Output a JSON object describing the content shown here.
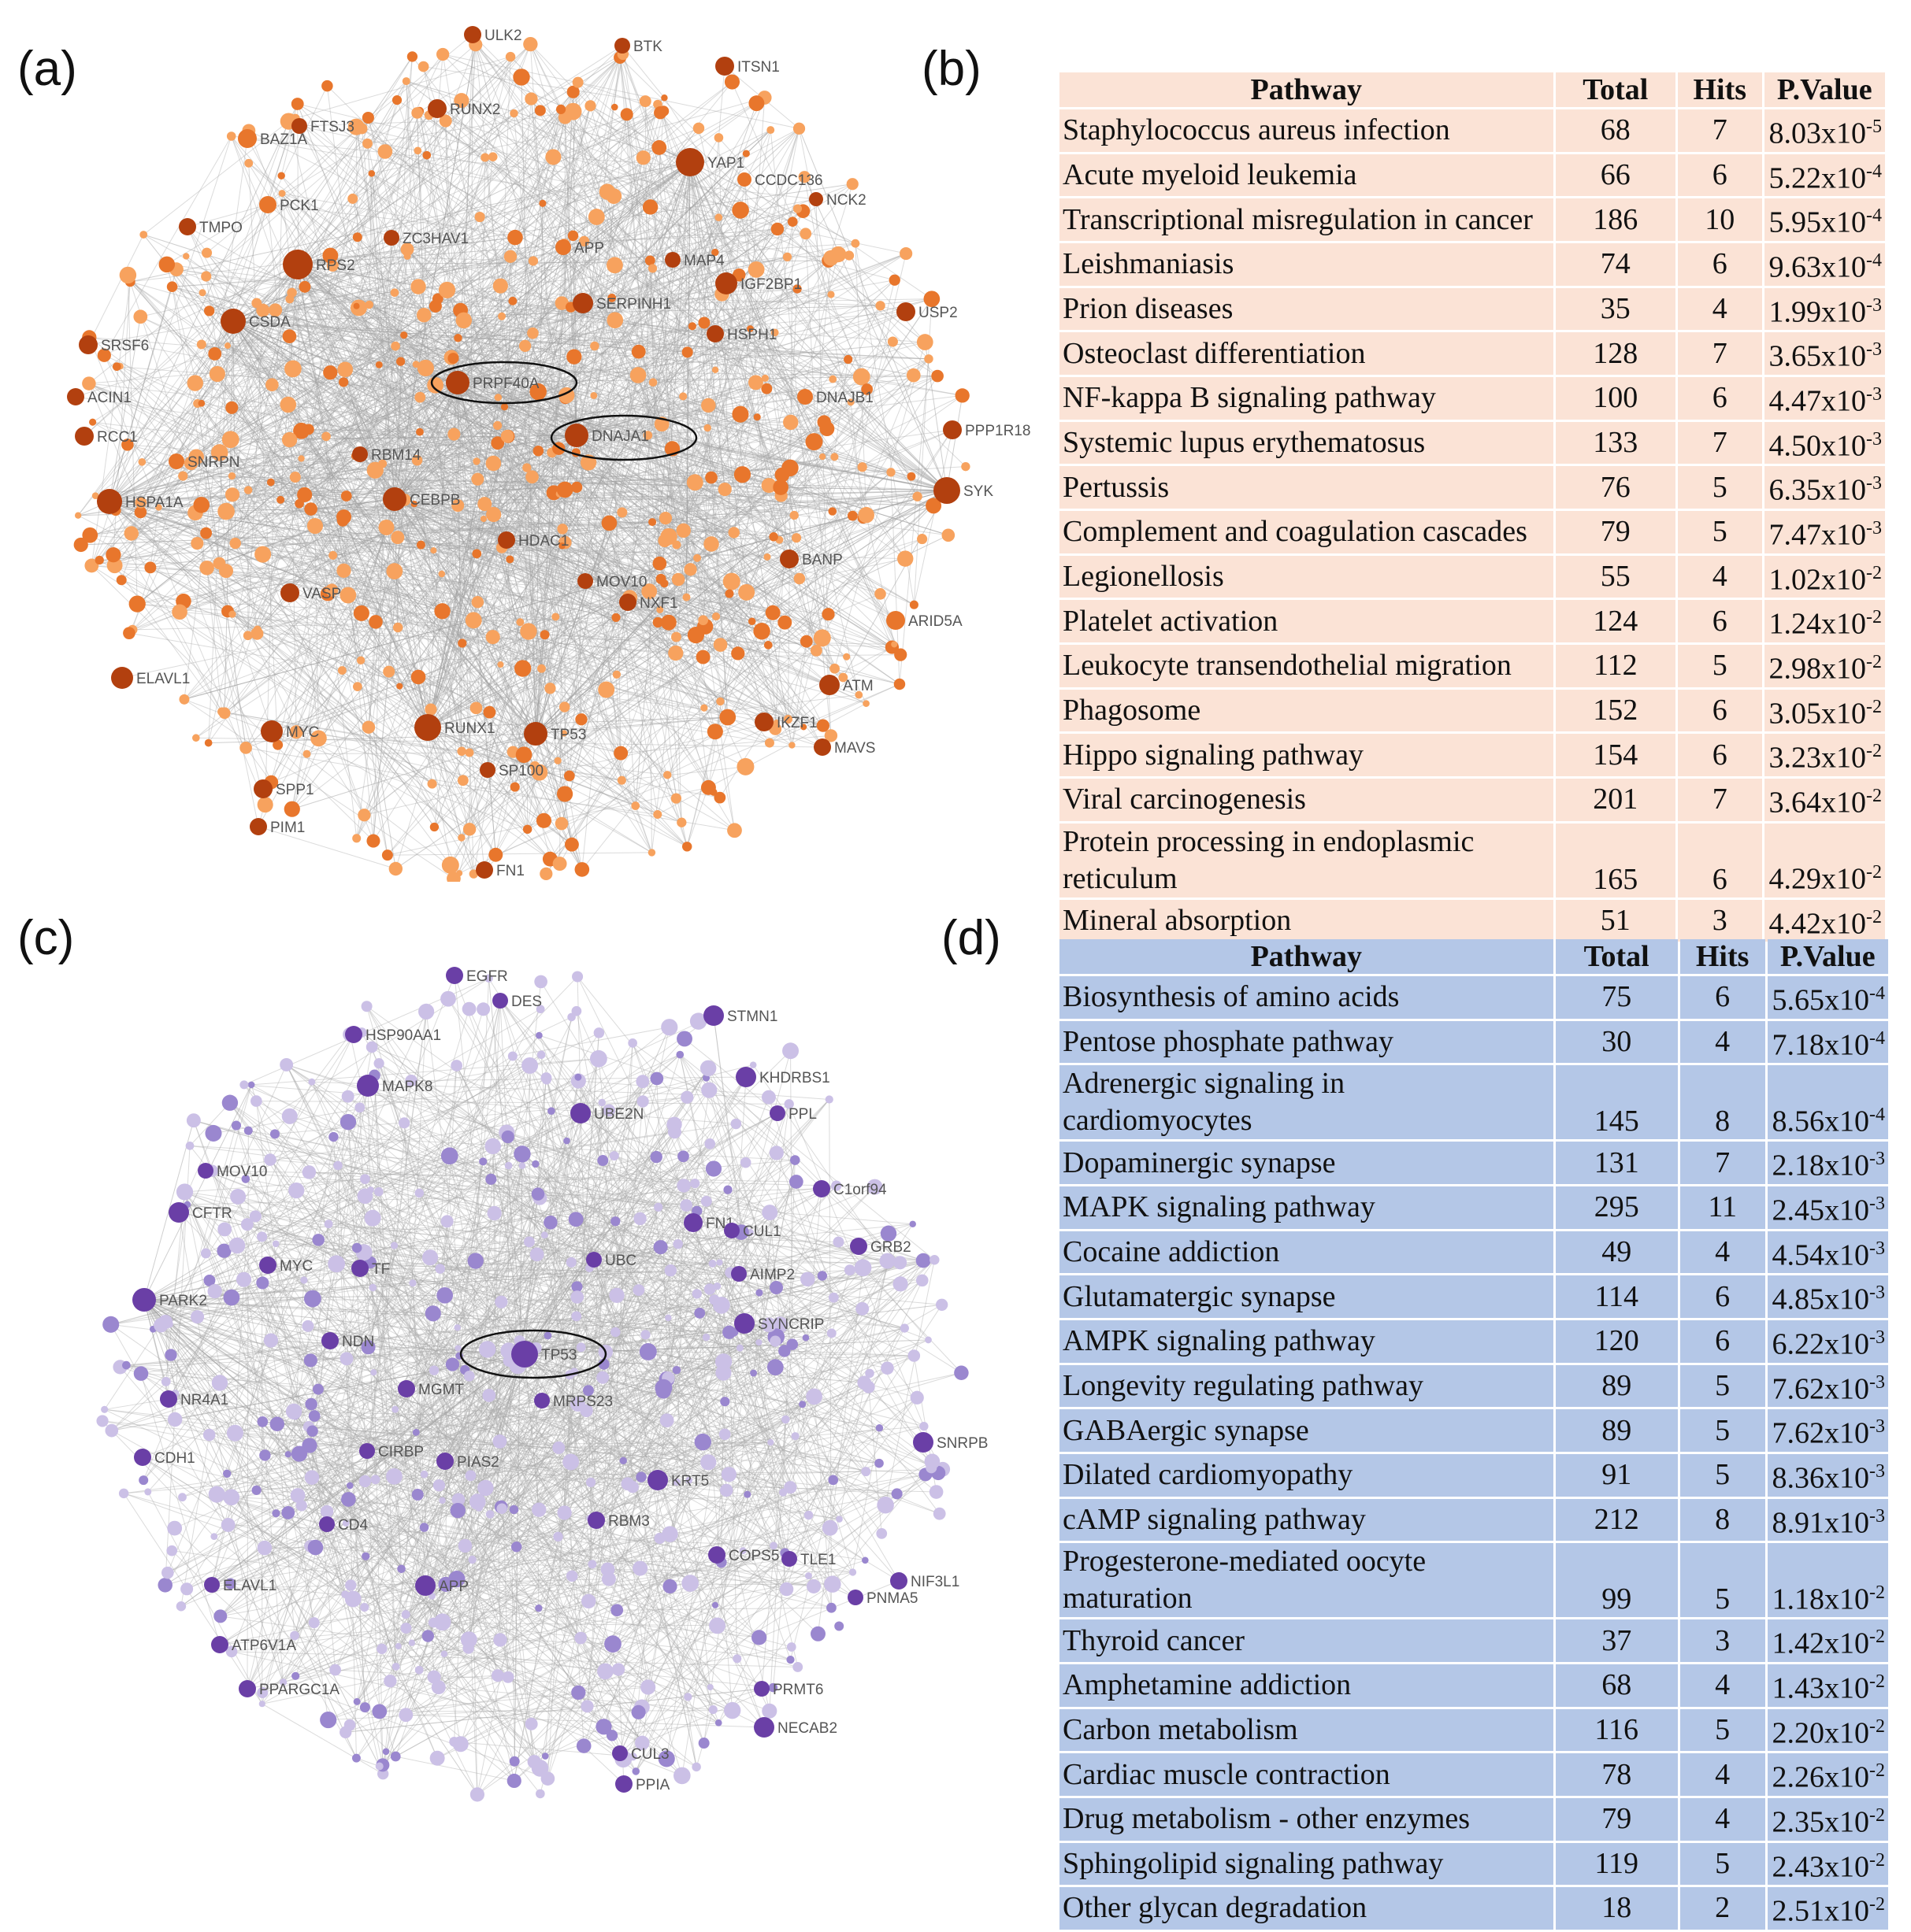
{
  "panels": {
    "a": "(a)",
    "b": "(b)",
    "c": "(c)",
    "d": "(d)"
  },
  "colors": {
    "network_a_dark": "#b2400f",
    "network_a_light": "#f7a25e",
    "network_c_dark": "#6a3fa6",
    "network_c_light": "#cbc0e6",
    "table_b_bg": "#fbe3d6",
    "table_d_bg": "#b4c7e7",
    "edge": "#b8b8b8"
  },
  "network_a": {
    "labels": [
      "ULK2",
      "BTK",
      "ITSN1",
      "FTSJ3",
      "RUNX2",
      "BAZ1A",
      "YAP1",
      "CCDC136",
      "PCK1",
      "NCK2",
      "TMPO",
      "ZC3HAV1",
      "APP",
      "MAP4",
      "RPS2",
      "IGF2BP1",
      "SERPINH1",
      "CSDA",
      "USP2",
      "HSPH1",
      "SRSF6",
      "PRPF40A",
      "DNAJB1",
      "ACIN1",
      "DNAJA1",
      "PPP1R18",
      "RCC1",
      "SNRPN",
      "RBM14",
      "HSPA1A",
      "CEBPB",
      "SYK",
      "HDAC1",
      "BANP",
      "MOV10",
      "VASP",
      "NXF1",
      "ARID5A",
      "ELAVL1",
      "ATM",
      "MYC",
      "RUNX1",
      "TP53",
      "IKZF1",
      "MAVS",
      "SP100",
      "SPP1",
      "PIM1",
      "FN1"
    ]
  },
  "network_c": {
    "labels": [
      "EGFR",
      "DES",
      "STMN1",
      "HSP90AA1",
      "KHDRBS1",
      "MAPK8",
      "UBE2N",
      "PPL",
      "MOV10",
      "C1orf94",
      "CFTR",
      "FN1",
      "CUL1",
      "GRB2",
      "MYC",
      "TF",
      "UBC",
      "AIMP2",
      "PARK2",
      "SYNCRIP",
      "NDN",
      "TP53",
      "MGMT",
      "MRPS23",
      "NR4A1",
      "SNRPB",
      "CDH1",
      "CIRBP",
      "PIAS2",
      "KRT5",
      "CD4",
      "RBM3",
      "COPS5",
      "TLE1",
      "ELAVL1",
      "APP",
      "NIF3L1",
      "PNMA5",
      "ATP6V1A",
      "PPARGC1A",
      "PRMT6",
      "NECAB2",
      "CUL3",
      "PPIA"
    ]
  },
  "table_b": {
    "headers": [
      "Pathway",
      "Total",
      "Hits",
      "P.Value"
    ],
    "rows": [
      {
        "pathway": "Staphylococcus aureus infection",
        "total": "68",
        "hits": "7",
        "pvalue": "8.03x10",
        "exp": "-5"
      },
      {
        "pathway": "Acute myeloid leukemia",
        "total": "66",
        "hits": "6",
        "pvalue": "5.22x10",
        "exp": "-4"
      },
      {
        "pathway": "Transcriptional misregulation in cancer",
        "total": "186",
        "hits": "10",
        "pvalue": "5.95x10",
        "exp": "-4"
      },
      {
        "pathway": "Leishmaniasis",
        "total": "74",
        "hits": "6",
        "pvalue": "9.63x10",
        "exp": "-4"
      },
      {
        "pathway": "Prion diseases",
        "total": "35",
        "hits": "4",
        "pvalue": "1.99x10",
        "exp": "-3"
      },
      {
        "pathway": "Osteoclast differentiation",
        "total": "128",
        "hits": "7",
        "pvalue": "3.65x10",
        "exp": "-3"
      },
      {
        "pathway": "NF-kappa B signaling pathway",
        "total": "100",
        "hits": "6",
        "pvalue": "4.47x10",
        "exp": "-3"
      },
      {
        "pathway": "Systemic lupus erythematosus",
        "total": "133",
        "hits": "7",
        "pvalue": "4.50x10",
        "exp": "-3"
      },
      {
        "pathway": "Pertussis",
        "total": "76",
        "hits": "5",
        "pvalue": "6.35x10",
        "exp": "-3"
      },
      {
        "pathway": "Complement and coagulation cascades",
        "total": "79",
        "hits": "5",
        "pvalue": "7.47x10",
        "exp": "-3"
      },
      {
        "pathway": "Legionellosis",
        "total": "55",
        "hits": "4",
        "pvalue": "1.02x10",
        "exp": "-2"
      },
      {
        "pathway": "Platelet activation",
        "total": "124",
        "hits": "6",
        "pvalue": "1.24x10",
        "exp": "-2"
      },
      {
        "pathway": "Leukocyte transendothelial migration",
        "total": "112",
        "hits": "5",
        "pvalue": "2.98x10",
        "exp": "-2"
      },
      {
        "pathway": "Phagosome",
        "total": "152",
        "hits": "6",
        "pvalue": "3.05x10",
        "exp": "-2"
      },
      {
        "pathway": "Hippo signaling pathway",
        "total": "154",
        "hits": "6",
        "pvalue": "3.23x10",
        "exp": "-2"
      },
      {
        "pathway": "Viral carcinogenesis",
        "total": "201",
        "hits": "7",
        "pvalue": "3.64x10",
        "exp": "-2"
      },
      {
        "pathway": "Protein processing in endoplasmic",
        "pathway2": "reticulum",
        "total": "165",
        "hits": "6",
        "pvalue": "4.29x10",
        "exp": "-2"
      },
      {
        "pathway": "Mineral absorption",
        "total": "51",
        "hits": "3",
        "pvalue": "4.42x10",
        "exp": "-2"
      }
    ]
  },
  "table_d": {
    "headers": [
      "Pathway",
      "Total",
      "Hits",
      "P.Value"
    ],
    "rows": [
      {
        "pathway": "Biosynthesis of amino acids",
        "total": "75",
        "hits": "6",
        "pvalue": "5.65x10",
        "exp": "-4"
      },
      {
        "pathway": "Pentose phosphate pathway",
        "total": "30",
        "hits": "4",
        "pvalue": "7.18x10",
        "exp": "-4"
      },
      {
        "pathway": "Adrenergic signaling in",
        "pathway2": "cardiomyocytes",
        "total": "145",
        "hits": "8",
        "pvalue": "8.56x10",
        "exp": "-4"
      },
      {
        "pathway": "Dopaminergic synapse",
        "total": "131",
        "hits": "7",
        "pvalue": "2.18x10",
        "exp": "-3"
      },
      {
        "pathway": "MAPK signaling pathway",
        "total": "295",
        "hits": "11",
        "pvalue": "2.45x10",
        "exp": "-3"
      },
      {
        "pathway": "Cocaine addiction",
        "total": "49",
        "hits": "4",
        "pvalue": "4.54x10",
        "exp": "-3"
      },
      {
        "pathway": "Glutamatergic synapse",
        "total": "114",
        "hits": "6",
        "pvalue": "4.85x10",
        "exp": "-3"
      },
      {
        "pathway": "AMPK signaling pathway",
        "total": "120",
        "hits": "6",
        "pvalue": "6.22x10",
        "exp": "-3"
      },
      {
        "pathway": "Longevity regulating pathway",
        "total": "89",
        "hits": "5",
        "pvalue": "7.62x10",
        "exp": "-3"
      },
      {
        "pathway": "GABAergic synapse",
        "total": "89",
        "hits": "5",
        "pvalue": "7.62x10",
        "exp": "-3"
      },
      {
        "pathway": "Dilated cardiomyopathy",
        "total": "91",
        "hits": "5",
        "pvalue": "8.36x10",
        "exp": "-3"
      },
      {
        "pathway": "cAMP signaling pathway",
        "total": "212",
        "hits": "8",
        "pvalue": "8.91x10",
        "exp": "-3"
      },
      {
        "pathway": "Progesterone-mediated oocyte",
        "pathway2": "maturation",
        "total": "99",
        "hits": "5",
        "pvalue": "1.18x10",
        "exp": "-2"
      },
      {
        "pathway": "Thyroid cancer",
        "total": "37",
        "hits": "3",
        "pvalue": "1.42x10",
        "exp": "-2"
      },
      {
        "pathway": "Amphetamine addiction",
        "total": "68",
        "hits": "4",
        "pvalue": "1.43x10",
        "exp": "-2"
      },
      {
        "pathway": "Carbon metabolism",
        "total": "116",
        "hits": "5",
        "pvalue": "2.20x10",
        "exp": "-2"
      },
      {
        "pathway": "Cardiac muscle contraction",
        "total": "78",
        "hits": "4",
        "pvalue": "2.26x10",
        "exp": "-2"
      },
      {
        "pathway": "Drug metabolism - other enzymes",
        "total": "79",
        "hits": "4",
        "pvalue": "2.35x10",
        "exp": "-2"
      },
      {
        "pathway": "Sphingolipid signaling pathway",
        "total": "119",
        "hits": "5",
        "pvalue": "2.43x10",
        "exp": "-2"
      },
      {
        "pathway": "Other glycan degradation",
        "total": "18",
        "hits": "2",
        "pvalue": "2.51x10",
        "exp": "-2"
      }
    ]
  }
}
